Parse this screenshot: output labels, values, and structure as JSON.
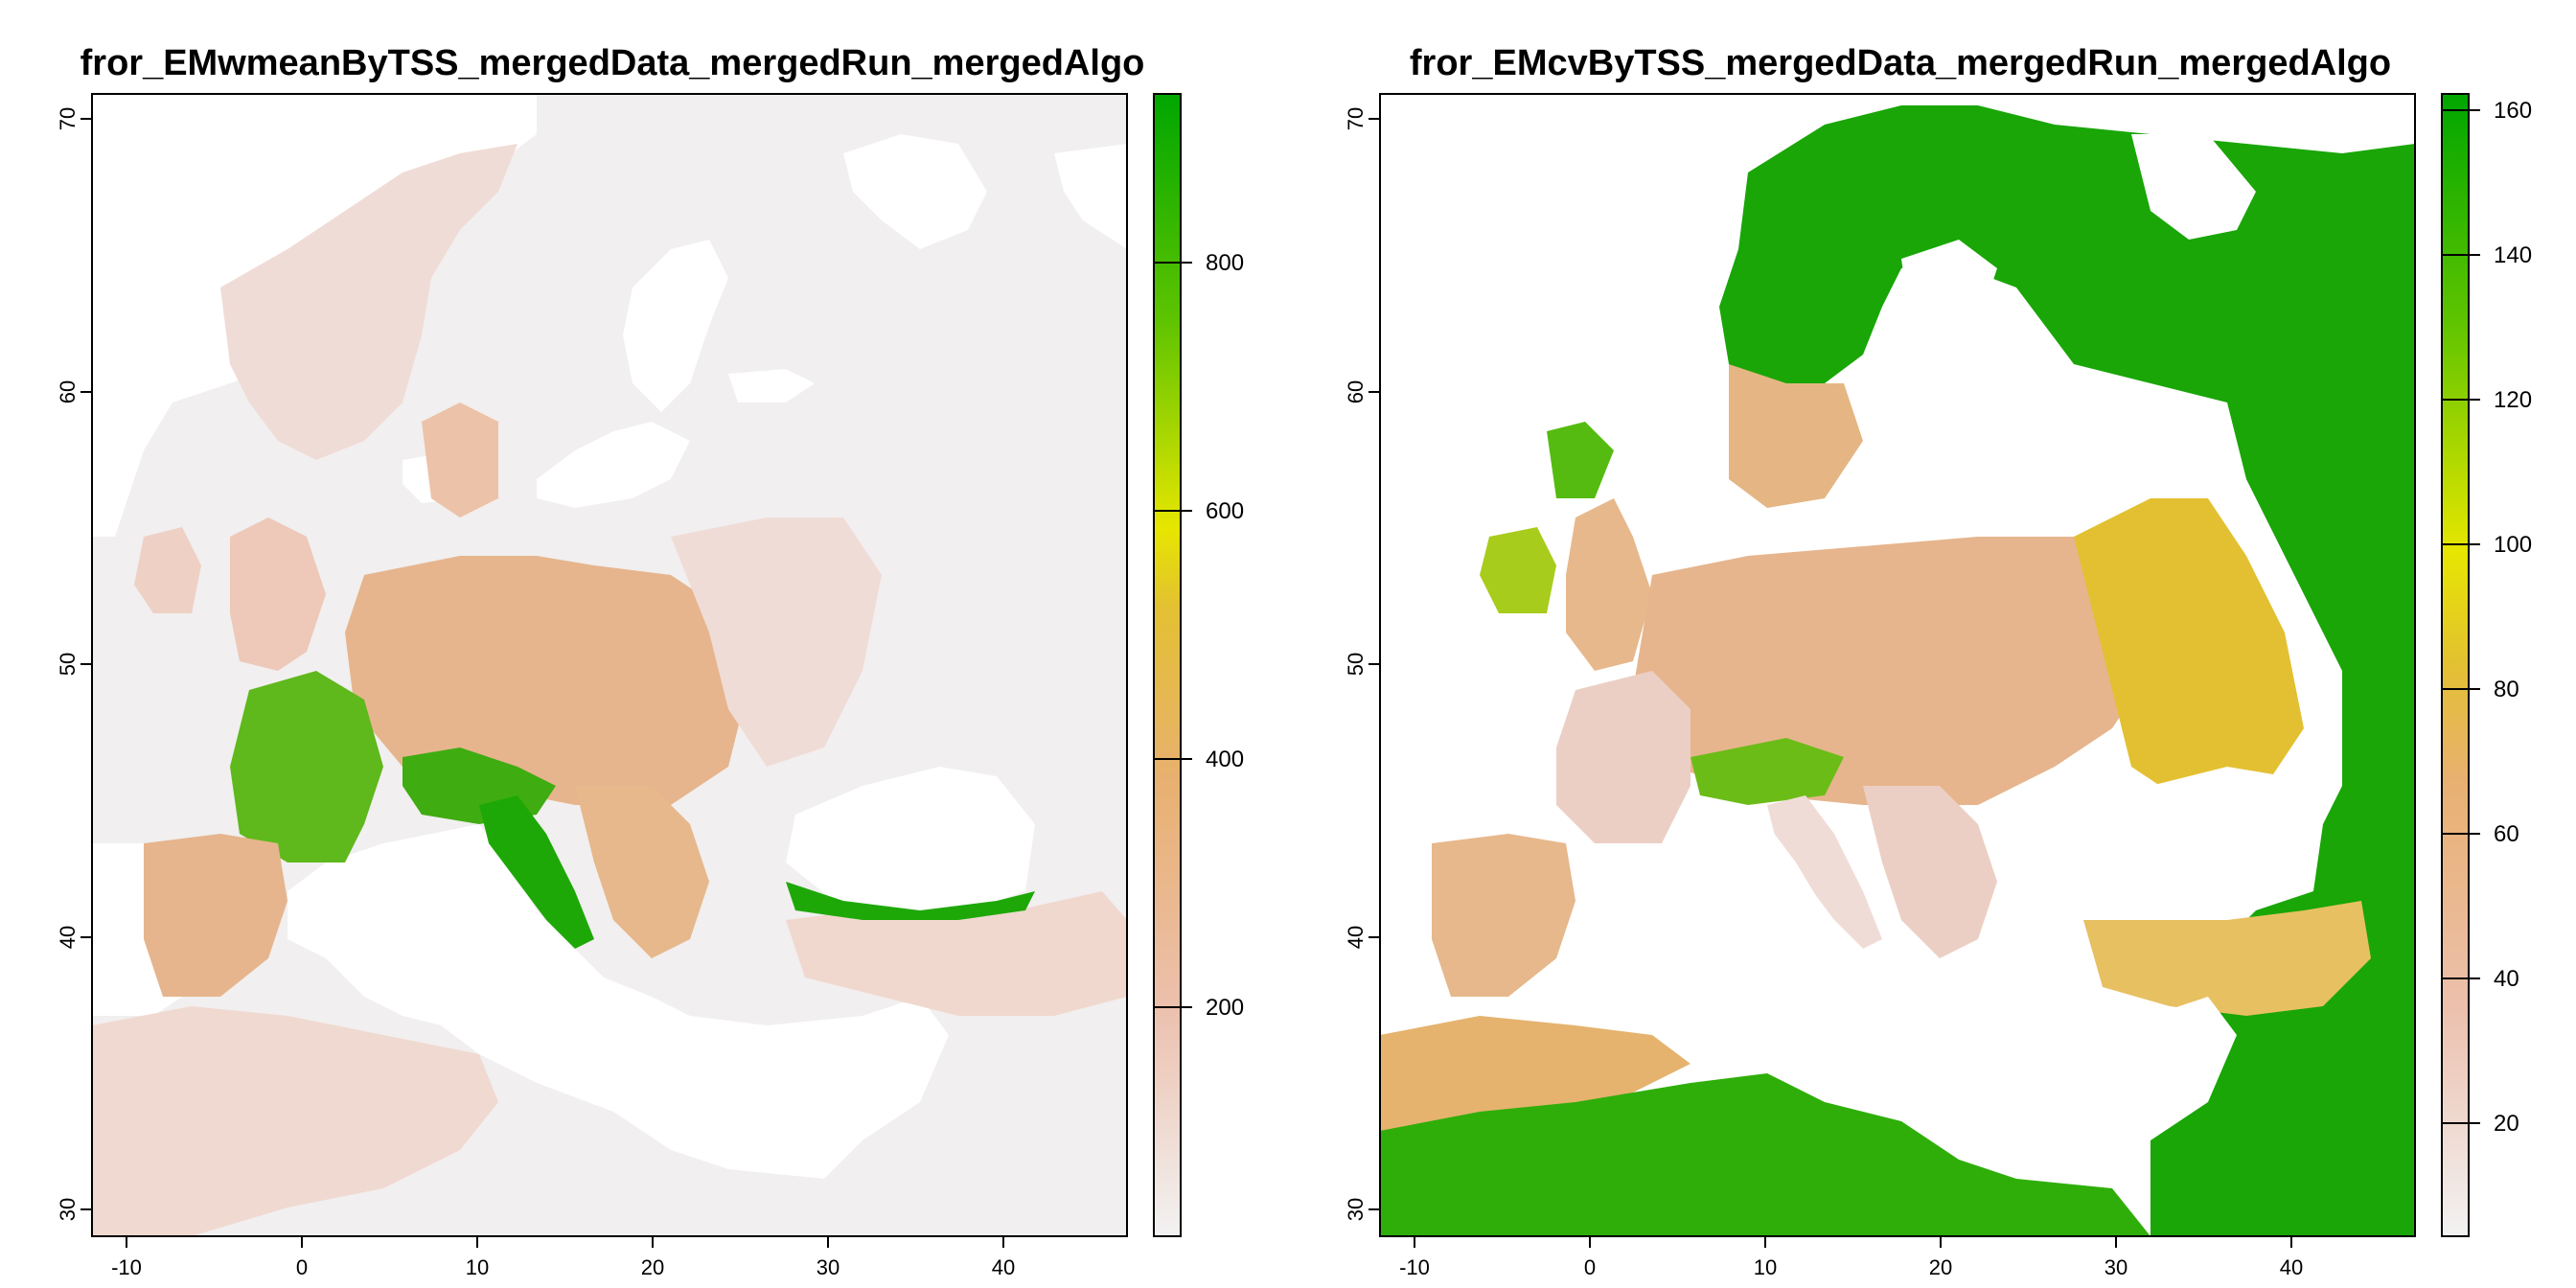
{
  "panels": [
    {
      "title": "fror_EMwmeanByTSS_mergedData_mergedRun_mergedAlgo",
      "x_ticks": [
        "-10",
        "0",
        "10",
        "20",
        "30",
        "40"
      ],
      "y_ticks": [
        "30",
        "40",
        "50",
        "60",
        "70"
      ],
      "colorbar_ticks": [
        "200",
        "400",
        "600",
        "800"
      ],
      "colorbar_range": [
        0,
        930
      ],
      "colors": {
        "low": "#f2f2f2",
        "mid_low": "#eab38f",
        "mid": "#e3c32a",
        "mid_high": "#e6e600",
        "high": "#00a600"
      }
    },
    {
      "title": "fror_EMcvByTSS_mergedData_mergedRun_mergedAlgo",
      "x_ticks": [
        "-10",
        "0",
        "10",
        "20",
        "30",
        "40"
      ],
      "y_ticks": [
        "30",
        "40",
        "50",
        "60",
        "70"
      ],
      "colorbar_ticks": [
        "20",
        "40",
        "60",
        "80",
        "100",
        "120",
        "140",
        "160"
      ],
      "colorbar_range": [
        4,
        162
      ],
      "colors": {
        "low": "#f2f2f2",
        "mid_low": "#eab38f",
        "mid": "#e3c32a",
        "mid_high": "#e6e600",
        "high": "#00a600"
      }
    }
  ]
}
